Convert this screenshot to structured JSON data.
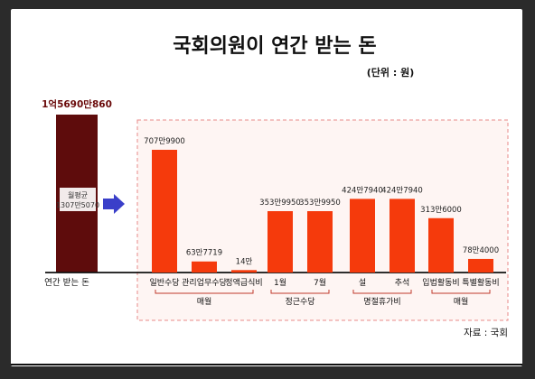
{
  "chart_data": {
    "type": "bar",
    "title": "국회의원이 연간 받는 돈",
    "unit_note": "(단위 : 원)",
    "source": "자료 : 국회",
    "total": {
      "label": "연간 받는 돈",
      "value_label": "1억5690만860",
      "value": 156900860,
      "monthly_avg_title": "월평균",
      "monthly_avg_value": "1307만5070",
      "color": "#5e0c0c"
    },
    "bar_color": "#f53a0c",
    "categories": [
      "일반수당",
      "관리업무수당",
      "정액급식비",
      "1월",
      "7월",
      "설",
      "추석",
      "입법활동비",
      "특별활동비"
    ],
    "values": [
      7079900,
      637719,
      140000,
      3539950,
      3539950,
      4247940,
      4247940,
      3136000,
      784000
    ],
    "value_labels": [
      "707만9900",
      "63만7719",
      "14만",
      "353만9950",
      "353만9950",
      "424만7940",
      "424만7940",
      "313만6000",
      "78만4000"
    ],
    "groups": [
      {
        "label": "매월",
        "start": 0,
        "end": 2
      },
      {
        "label": "정근수당",
        "start": 3,
        "end": 4
      },
      {
        "label": "명절휴가비",
        "start": 5,
        "end": 6
      },
      {
        "label": "매월",
        "start": 7,
        "end": 8
      }
    ]
  }
}
